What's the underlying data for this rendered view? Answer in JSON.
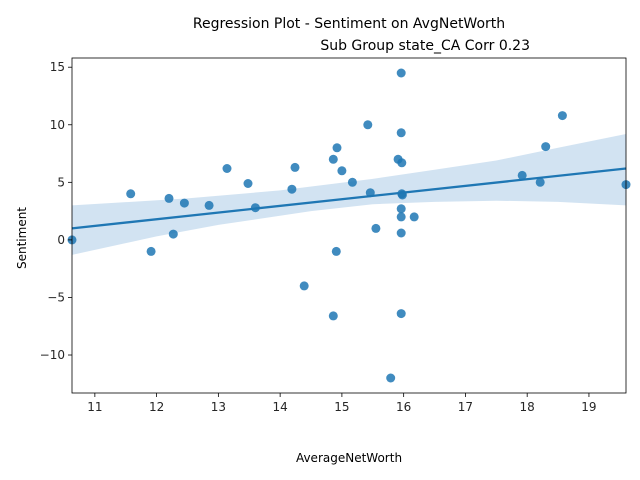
{
  "chart_data": {
    "type": "scatter",
    "title_line1": "Regression Plot - Sentiment on AvgNetWorth",
    "title_line2": "Sub Group state_CA Corr 0.23",
    "xlabel": "AverageNetWorth",
    "ylabel": "Sentiment",
    "xlim": [
      10.63,
      19.6
    ],
    "ylim": [
      -13.3,
      15.8
    ],
    "xticks": [
      "11",
      "12",
      "13",
      "14",
      "15",
      "16",
      "17",
      "18",
      "19"
    ],
    "yticks": [
      "15",
      "10",
      "5",
      "0",
      "−5",
      "−10"
    ],
    "xtick_values": [
      11,
      12,
      13,
      14,
      15,
      16,
      17,
      18,
      19
    ],
    "ytick_values": [
      15,
      10,
      5,
      0,
      -5,
      -10
    ],
    "grid": false,
    "colors": {
      "points": "#1f77b4",
      "line": "#1f77b4",
      "band": "#a6c8e6"
    },
    "points": [
      {
        "x": 10.63,
        "y": 0.0
      },
      {
        "x": 11.58,
        "y": 4.0
      },
      {
        "x": 11.91,
        "y": -1.0
      },
      {
        "x": 12.2,
        "y": 3.6
      },
      {
        "x": 12.27,
        "y": 0.5
      },
      {
        "x": 12.45,
        "y": 3.2
      },
      {
        "x": 12.85,
        "y": 3.0
      },
      {
        "x": 13.14,
        "y": 6.2
      },
      {
        "x": 13.48,
        "y": 4.9
      },
      {
        "x": 13.6,
        "y": 2.8
      },
      {
        "x": 14.19,
        "y": 4.4
      },
      {
        "x": 14.24,
        "y": 6.3
      },
      {
        "x": 14.39,
        "y": -4.0
      },
      {
        "x": 14.86,
        "y": 7.0
      },
      {
        "x": 14.86,
        "y": -6.6
      },
      {
        "x": 14.92,
        "y": 8.0
      },
      {
        "x": 14.91,
        "y": -1.0
      },
      {
        "x": 15.0,
        "y": 6.0
      },
      {
        "x": 15.17,
        "y": 5.0
      },
      {
        "x": 15.42,
        "y": 10.0
      },
      {
        "x": 15.46,
        "y": 4.1
      },
      {
        "x": 15.55,
        "y": 1.0
      },
      {
        "x": 15.79,
        "y": -12.0
      },
      {
        "x": 15.91,
        "y": 7.0
      },
      {
        "x": 15.96,
        "y": 14.5
      },
      {
        "x": 15.96,
        "y": 9.3
      },
      {
        "x": 15.97,
        "y": 6.7
      },
      {
        "x": 15.97,
        "y": 4.0
      },
      {
        "x": 15.98,
        "y": 3.9
      },
      {
        "x": 15.96,
        "y": 2.7
      },
      {
        "x": 15.96,
        "y": 2.0
      },
      {
        "x": 15.96,
        "y": 0.6
      },
      {
        "x": 15.96,
        "y": -6.4
      },
      {
        "x": 16.17,
        "y": 2.0
      },
      {
        "x": 17.92,
        "y": 5.6
      },
      {
        "x": 18.21,
        "y": 5.0
      },
      {
        "x": 18.3,
        "y": 8.1
      },
      {
        "x": 18.57,
        "y": 10.8
      },
      {
        "x": 19.6,
        "y": 4.8
      }
    ],
    "regression": {
      "line": [
        [
          10.63,
          1.0
        ],
        [
          19.6,
          6.2
        ]
      ],
      "ci_upper": [
        [
          10.63,
          3.0
        ],
        [
          12.5,
          3.6
        ],
        [
          14.0,
          4.3
        ],
        [
          15.5,
          5.3
        ],
        [
          16.5,
          6.1
        ],
        [
          17.5,
          6.9
        ],
        [
          18.5,
          8.0
        ],
        [
          19.6,
          9.2
        ]
      ],
      "ci_lower": [
        [
          10.63,
          -1.3
        ],
        [
          12.0,
          0.3
        ],
        [
          13.0,
          1.3
        ],
        [
          14.5,
          2.5
        ],
        [
          15.5,
          3.1
        ],
        [
          16.5,
          3.3
        ],
        [
          17.5,
          3.4
        ],
        [
          18.5,
          3.3
        ],
        [
          19.6,
          3.0
        ]
      ]
    }
  }
}
